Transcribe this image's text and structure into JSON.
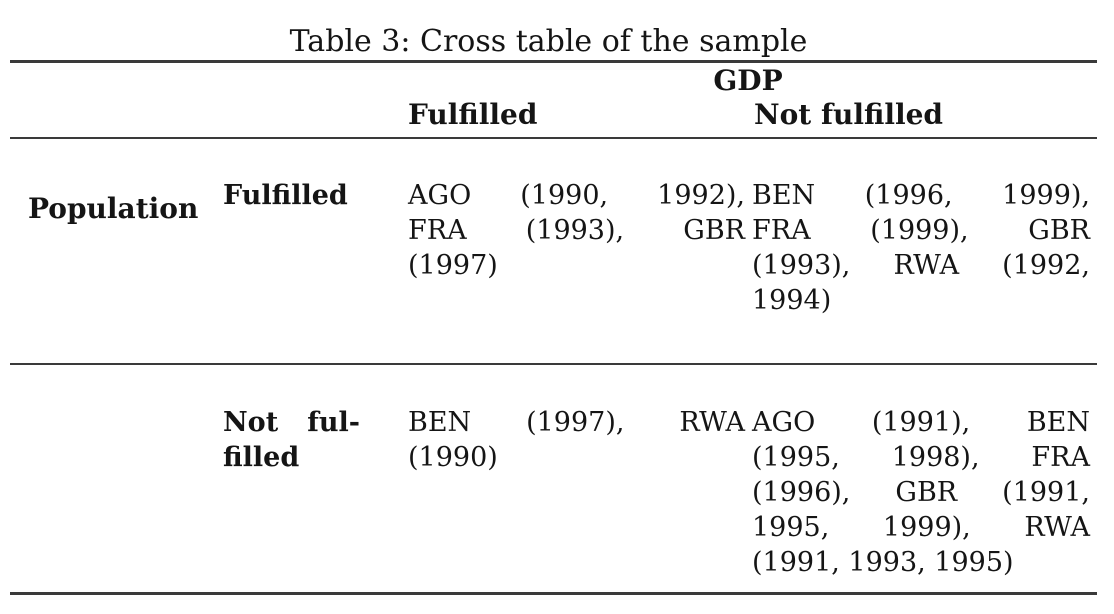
{
  "caption": "Table 3: Cross table of the sample",
  "table": {
    "column_group_header": "GDP",
    "column_headers": [
      "Fulfilled",
      "Not fulfilled"
    ],
    "row_group_header": "Population",
    "rows": [
      {
        "row_label_lines": [
          "Fulfilled"
        ],
        "gdp_fulfilled_lines": [
          "AGO (1990, 1992),",
          "FRA (1993), GBR",
          "(1997)"
        ],
        "gdp_not_fulfilled_lines": [
          "BEN (1996, 1999),",
          "FRA (1999), GBR",
          "(1993), RWA (1992,",
          "1994)"
        ]
      },
      {
        "row_label_lines": [
          "Not ful-",
          "filled"
        ],
        "gdp_fulfilled_lines": [
          "BEN (1997), RWA",
          "(1990)"
        ],
        "gdp_not_fulfilled_lines": [
          "AGO (1991), BEN",
          "(1995, 1998), FRA",
          "(1996), GBR (1991,",
          "1995, 1999), RWA",
          "(1991, 1993, 1995)"
        ]
      }
    ]
  },
  "colors": {
    "rule": "#3a3a3a",
    "text": "#151515",
    "background": "#ffffff"
  }
}
